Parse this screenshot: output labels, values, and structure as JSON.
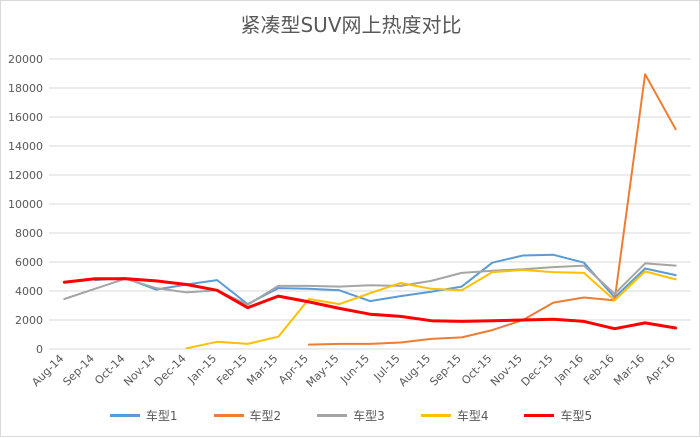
{
  "chart_data": {
    "type": "line",
    "title": "紧凑型SUV网上热度对比",
    "xlabel": "",
    "ylabel": "",
    "ylim": [
      0,
      20000
    ],
    "y_ticks": [
      0,
      2000,
      4000,
      6000,
      8000,
      10000,
      12000,
      14000,
      16000,
      18000,
      20000
    ],
    "grid": true,
    "legend_position": "bottom",
    "categories": [
      "Aug-14",
      "Sep-14",
      "Oct-14",
      "Nov-14",
      "Dec-14",
      "Jan-15",
      "Feb-15",
      "Mar-15",
      "Apr-15",
      "May-15",
      "Jun-15",
      "Jul-15",
      "Aug-15",
      "Sep-15",
      "Oct-15",
      "Nov-15",
      "Dec-15",
      "Jan-16",
      "Feb-16",
      "Mar-16",
      "Apr-16"
    ],
    "series": [
      {
        "name": "车型1",
        "color": "#5b9bd5",
        "width": 2,
        "values": [
          null,
          4750,
          4900,
          4100,
          4450,
          4750,
          3100,
          4200,
          4150,
          4050,
          3300,
          3650,
          3950,
          4300,
          5950,
          6450,
          6500,
          5950,
          3550,
          5550,
          5100
        ]
      },
      {
        "name": "车型2",
        "color": "#ed7d31",
        "width": 2,
        "values": [
          null,
          null,
          null,
          null,
          null,
          null,
          null,
          null,
          300,
          350,
          350,
          450,
          700,
          800,
          1300,
          2000,
          3200,
          3550,
          3350,
          18950,
          15150
        ]
      },
      {
        "name": "车型3",
        "color": "#a5a5a5",
        "width": 2,
        "values": [
          3450,
          4150,
          4850,
          4200,
          3900,
          4050,
          3050,
          4350,
          4350,
          4300,
          4400,
          4350,
          4700,
          5250,
          5400,
          5500,
          5650,
          5750,
          3800,
          5900,
          5750
        ]
      },
      {
        "name": "车型4",
        "color": "#ffc000",
        "width": 2,
        "values": [
          null,
          null,
          null,
          null,
          50,
          500,
          350,
          850,
          3450,
          3100,
          3850,
          4550,
          4150,
          4050,
          5300,
          5450,
          5300,
          5250,
          3350,
          5350,
          4800
        ]
      },
      {
        "name": "车型5",
        "color": "#ff0000",
        "width": 3,
        "values": [
          4600,
          4850,
          4850,
          4700,
          4450,
          4050,
          2850,
          3650,
          3250,
          2800,
          2400,
          2250,
          1950,
          1900,
          1950,
          2000,
          2050,
          1900,
          1400,
          1800,
          1450
        ]
      }
    ]
  }
}
